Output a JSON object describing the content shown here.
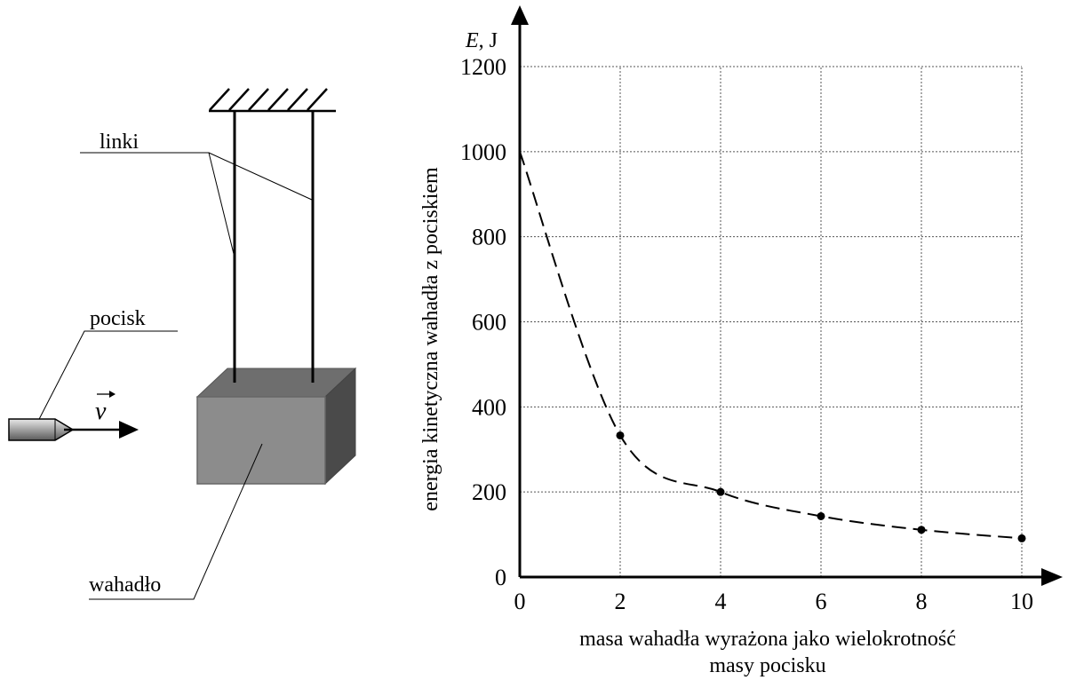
{
  "diagram": {
    "labels": {
      "strings": "linki",
      "bullet": "pocisk",
      "pendulum": "wahadło",
      "velocity_symbol": "v"
    }
  },
  "chart_data": {
    "type": "line",
    "title": "",
    "ylabel_symbol": "E, J",
    "ylabel": "energia kinetyczna wahadła z pociskiem",
    "xlabel_line1": "masa wahadła wyrażona jako wielokrotność",
    "xlabel_line2": "masy pocisku",
    "xlim": [
      0,
      10
    ],
    "ylim": [
      0,
      1200
    ],
    "x_ticks": [
      0,
      2,
      4,
      6,
      8,
      10
    ],
    "y_ticks": [
      0,
      200,
      400,
      600,
      800,
      1000,
      1200
    ],
    "grid": true,
    "series": [
      {
        "style": "dashed",
        "x": [
          0,
          2,
          4,
          6,
          8,
          10
        ],
        "y": [
          1000,
          333,
          200,
          143,
          111,
          91
        ],
        "markers": [
          false,
          true,
          true,
          true,
          true,
          true
        ]
      }
    ]
  }
}
